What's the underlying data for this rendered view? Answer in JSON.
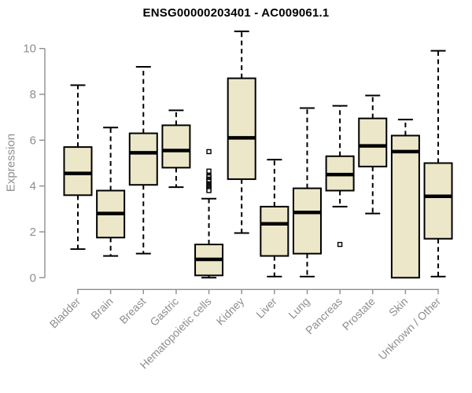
{
  "title": "ENSG00000203401 - AC009061.1",
  "chart_data": {
    "type": "boxplot",
    "title": "ENSG00000203401 - AC009061.1",
    "xlabel": "",
    "ylabel": "Expression",
    "ylim": [
      0,
      10
    ],
    "yticks": [
      0,
      2,
      4,
      6,
      8,
      10
    ],
    "grid": false,
    "legend": "none",
    "categories": [
      "Bladder",
      "Brain",
      "Breast",
      "Gastric",
      "Hematopoietic cells",
      "Kidney",
      "Liver",
      "Lung",
      "Pancreas",
      "Prostate",
      "Skin",
      "Unknown / Other"
    ],
    "series": [
      {
        "name": "Bladder",
        "min": 1.25,
        "q1": 3.6,
        "median": 4.55,
        "q3": 5.7,
        "max": 8.4,
        "outliers": []
      },
      {
        "name": "Brain",
        "min": 0.95,
        "q1": 1.75,
        "median": 2.8,
        "q3": 3.8,
        "max": 6.55,
        "outliers": []
      },
      {
        "name": "Breast",
        "min": 1.05,
        "q1": 4.05,
        "median": 5.45,
        "q3": 6.3,
        "max": 9.2,
        "outliers": []
      },
      {
        "name": "Gastric",
        "min": 3.95,
        "q1": 4.8,
        "median": 5.55,
        "q3": 6.65,
        "max": 7.3,
        "outliers": []
      },
      {
        "name": "Hematopoietic cells",
        "min": 0.0,
        "q1": 0.1,
        "median": 0.8,
        "q3": 1.45,
        "max": 3.45,
        "outliers": [
          5.5,
          4.65,
          4.45,
          4.4,
          4.3,
          4.25,
          4.2,
          4.1,
          4.05,
          4.0,
          3.95,
          3.9,
          3.85,
          3.8
        ]
      },
      {
        "name": "Kidney",
        "min": 1.95,
        "q1": 4.3,
        "median": 6.1,
        "q3": 8.7,
        "max": 10.75,
        "outliers": []
      },
      {
        "name": "Liver",
        "min": 0.05,
        "q1": 0.95,
        "median": 2.35,
        "q3": 3.1,
        "max": 5.15,
        "outliers": []
      },
      {
        "name": "Lung",
        "min": 0.05,
        "q1": 1.05,
        "median": 2.85,
        "q3": 3.9,
        "max": 7.4,
        "outliers": []
      },
      {
        "name": "Pancreas",
        "min": 3.1,
        "q1": 3.8,
        "median": 4.5,
        "q3": 5.3,
        "max": 7.5,
        "outliers": [
          1.45
        ]
      },
      {
        "name": "Prostate",
        "min": 2.8,
        "q1": 4.85,
        "median": 5.75,
        "q3": 6.95,
        "max": 7.95,
        "outliers": []
      },
      {
        "name": "Skin",
        "min": 0.0,
        "q1": 0.0,
        "median": 5.5,
        "q3": 6.2,
        "max": 6.9,
        "outliers": []
      },
      {
        "name": "Unknown / Other",
        "min": 0.05,
        "q1": 1.7,
        "median": 3.55,
        "q3": 5.0,
        "max": 9.9,
        "outliers": []
      }
    ],
    "colors": {
      "box_fill": "#ece7c8",
      "box_stroke": "#000000",
      "median": "#000000",
      "whisker": "#000000",
      "axis": "#8e8e8e",
      "tick_text": "#8e8e8e",
      "title_text": "#000000"
    }
  }
}
